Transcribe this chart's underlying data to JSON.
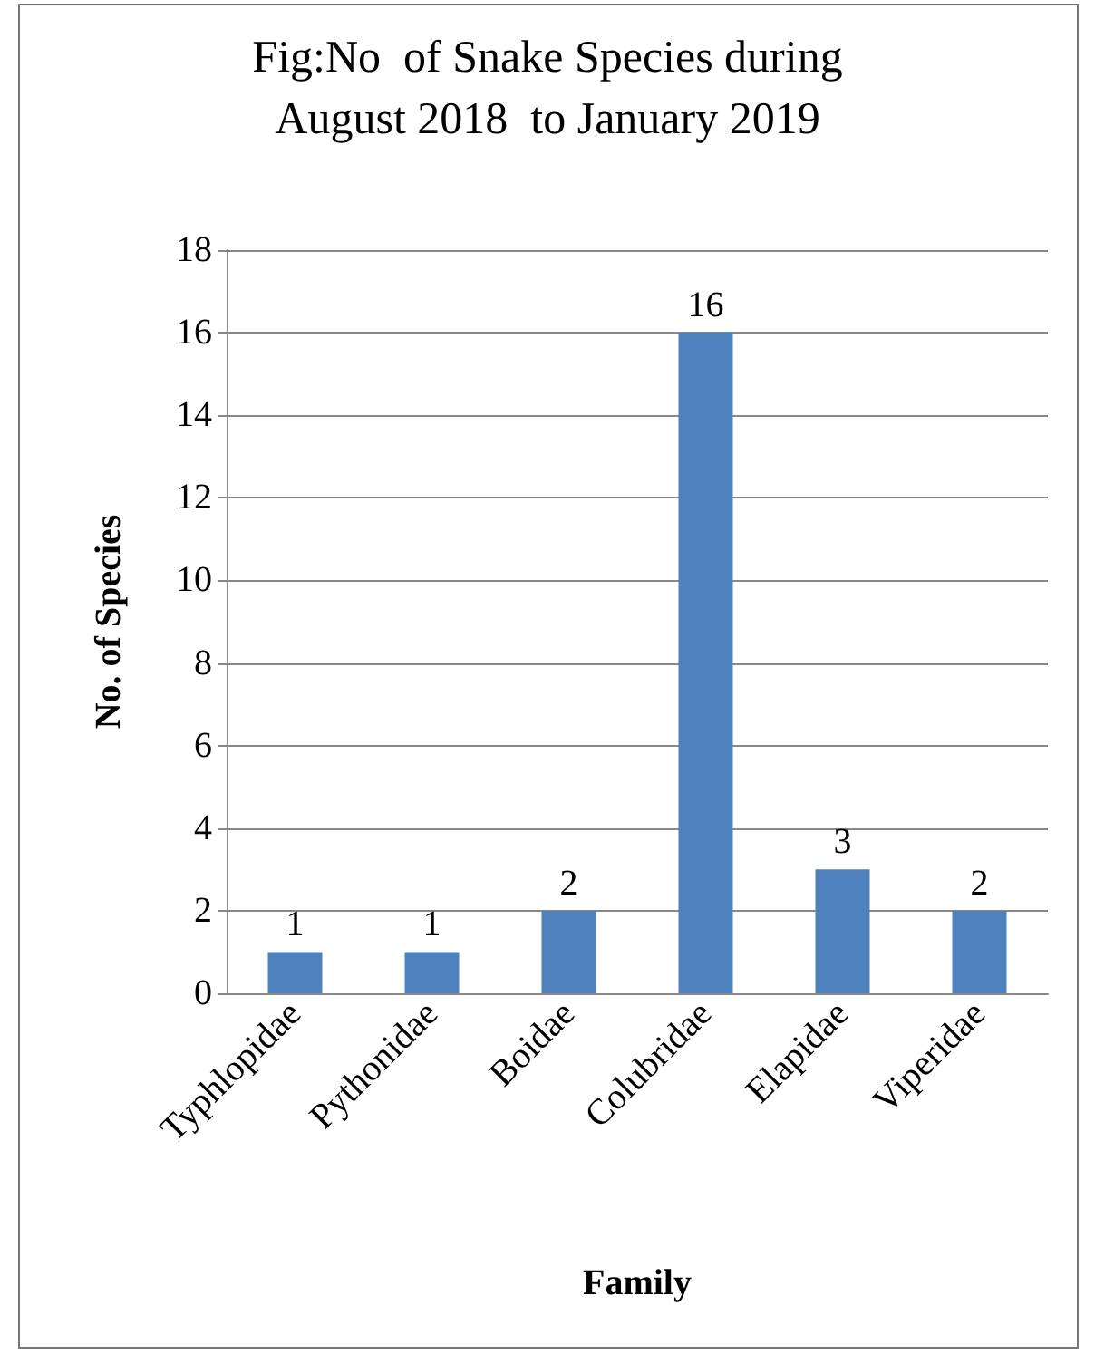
{
  "chart_data": {
    "type": "bar",
    "title": "Fig:No  of Snake Species during\nAugust 2018  to January 2019",
    "xlabel": "Family",
    "ylabel": "No. of Species",
    "categories": [
      "Typhlopidae",
      "Pythonidae",
      "Boidae",
      "Colubridae",
      "Elapidae",
      "Viperidae"
    ],
    "values": [
      1,
      1,
      2,
      16,
      3,
      2
    ],
    "color": "#4f81bd",
    "ylim": [
      0,
      18
    ],
    "yticks": [
      0,
      2,
      4,
      6,
      8,
      10,
      12,
      14,
      16,
      18
    ],
    "grid": "y",
    "data_labels": true
  }
}
